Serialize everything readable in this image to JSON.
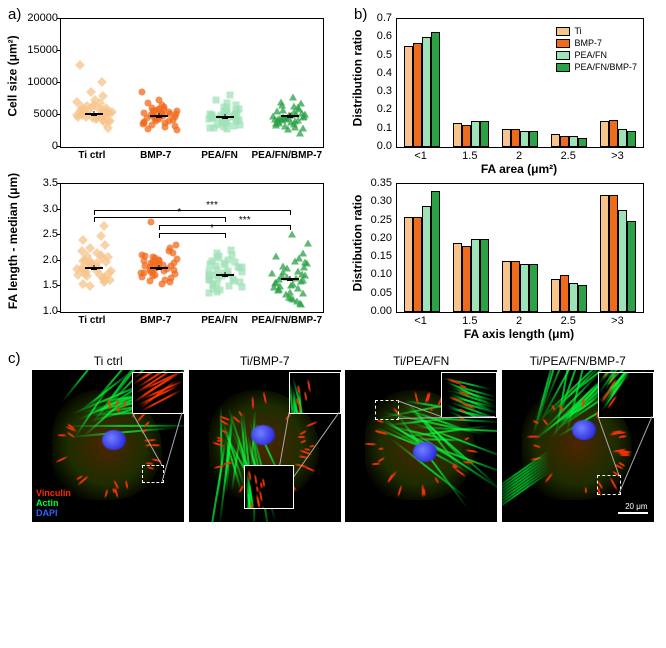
{
  "panels": {
    "a": "a)",
    "b": "b)",
    "c": "c)"
  },
  "colors": {
    "ti": "#f7c48b",
    "bmp7": "#f06a1c",
    "peafn": "#9fe2b8",
    "peafnbmp7": "#2aa245",
    "ti_border": "#c08040",
    "peafn_border": "#4ab078"
  },
  "scatter": {
    "categories": [
      "Ti ctrl",
      "BMP-7",
      "PEA/FN",
      "PEA/FN/BMP-7"
    ],
    "markers": [
      "diamond",
      "circle",
      "square",
      "tri"
    ],
    "series_colors": [
      "#f7c48b",
      "#f06a1c",
      "#9fe2b8",
      "#2aa245"
    ],
    "top": {
      "ylabel": "Cell size (μm²)",
      "ymin": 0,
      "ymax": 20000,
      "ystep": 5000,
      "means": [
        5300,
        5000,
        4800,
        5000
      ],
      "sems": [
        400,
        350,
        350,
        300
      ],
      "data": [
        [
          3000,
          3800,
          4000,
          4200,
          4300,
          4400,
          4600,
          4700,
          4800,
          4900,
          5000,
          5100,
          5200,
          5300,
          5400,
          5500,
          5600,
          5800,
          5900,
          6100,
          6200,
          6300,
          6400,
          6600,
          6900,
          7100,
          7400,
          7900,
          8600,
          10200,
          12800,
          4100,
          4500,
          5050,
          5250,
          5450,
          5650,
          5750,
          4650,
          4950
        ],
        [
          2700,
          2800,
          3100,
          3300,
          3500,
          3700,
          3800,
          3900,
          4000,
          4100,
          4200,
          4300,
          4400,
          4500,
          4650,
          4800,
          4900,
          5000,
          5100,
          5200,
          5300,
          5400,
          5600,
          5800,
          5900,
          6100,
          6300,
          6500,
          6800,
          7400,
          8600,
          3600,
          4550,
          4750,
          5050,
          5150,
          5350,
          5550,
          5700,
          6000
        ],
        [
          2800,
          2900,
          3000,
          3100,
          3300,
          3500,
          3700,
          3900,
          4000,
          4100,
          4200,
          4400,
          4500,
          4600,
          4700,
          4800,
          4900,
          5000,
          5100,
          5300,
          5400,
          5500,
          5700,
          5900,
          6100,
          6300,
          6500,
          6900,
          7300,
          8100,
          3400,
          3800,
          4300,
          4550,
          4650,
          4750,
          4850,
          5050,
          5200,
          5600
        ],
        [
          2200,
          2800,
          3100,
          3300,
          3500,
          3700,
          3900,
          4000,
          4100,
          4200,
          4300,
          4400,
          4500,
          4600,
          4700,
          4800,
          4900,
          5000,
          5100,
          5200,
          5400,
          5600,
          5800,
          5900,
          6200,
          6400,
          6600,
          6900,
          7100,
          7800,
          3000,
          3600,
          3800,
          4150,
          4350,
          4550,
          4650,
          4750,
          4950,
          5300
        ]
      ]
    },
    "bottom": {
      "ylabel": "FA length - median (μm)",
      "ymin": 1.0,
      "ymax": 3.5,
      "ystep": 0.5,
      "means": [
        1.87,
        1.87,
        1.74,
        1.66
      ],
      "sems": [
        0.04,
        0.04,
        0.04,
        0.04
      ],
      "sig": [
        {
          "from": 0,
          "to": 2,
          "y": 2.85,
          "label": "*"
        },
        {
          "from": 0,
          "to": 3,
          "y": 3.0,
          "label": "***"
        },
        {
          "from": 1,
          "to": 2,
          "y": 2.55,
          "label": "*"
        },
        {
          "from": 1,
          "to": 3,
          "y": 2.7,
          "label": "***"
        }
      ],
      "data": [
        [
          1.5,
          1.55,
          1.6,
          1.62,
          1.65,
          1.68,
          1.7,
          1.72,
          1.75,
          1.77,
          1.79,
          1.8,
          1.82,
          1.84,
          1.86,
          1.88,
          1.9,
          1.92,
          1.94,
          1.96,
          1.98,
          2.0,
          2.02,
          2.05,
          2.1,
          2.12,
          2.15,
          2.2,
          2.25,
          2.3,
          2.4,
          2.48,
          2.68,
          1.58,
          1.73,
          1.81,
          1.93,
          2.07,
          1.67,
          1.99
        ],
        [
          1.8,
          1.55,
          1.6,
          1.63,
          1.66,
          1.7,
          1.72,
          1.74,
          1.76,
          1.78,
          1.8,
          1.82,
          1.84,
          1.86,
          1.88,
          1.9,
          1.92,
          1.94,
          1.96,
          1.98,
          2.0,
          2.02,
          2.04,
          2.06,
          2.08,
          2.12,
          2.15,
          2.2,
          2.25,
          2.3,
          2.75,
          1.58,
          1.68,
          1.83,
          1.91,
          1.99,
          2.1,
          1.77,
          1.89,
          1.95
        ],
        [
          1.38,
          1.42,
          1.45,
          1.48,
          1.5,
          1.52,
          1.55,
          1.58,
          1.6,
          1.62,
          1.64,
          1.66,
          1.68,
          1.7,
          1.72,
          1.74,
          1.76,
          1.78,
          1.8,
          1.82,
          1.85,
          1.88,
          1.9,
          1.92,
          1.95,
          1.98,
          2.0,
          2.05,
          2.1,
          2.15,
          2.22,
          1.4,
          1.54,
          1.63,
          1.73,
          1.81,
          1.87,
          1.93,
          2.02,
          2.12
        ],
        [
          1.15,
          1.18,
          1.22,
          1.25,
          1.3,
          1.35,
          1.38,
          1.42,
          1.45,
          1.48,
          1.5,
          1.52,
          1.55,
          1.58,
          1.6,
          1.62,
          1.65,
          1.68,
          1.7,
          1.72,
          1.75,
          1.78,
          1.8,
          1.85,
          1.9,
          1.95,
          2.0,
          2.05,
          2.1,
          2.15,
          2.35,
          2.52,
          1.28,
          1.4,
          1.47,
          1.57,
          1.67,
          1.77,
          1.88,
          1.98
        ]
      ]
    }
  },
  "bars": {
    "legend": [
      "Ti",
      "BMP-7",
      "PEA/FN",
      "PEA/FN/BMP-7"
    ],
    "legend_colors": [
      "#f7c48b",
      "#f06a1c",
      "#9fe2b8",
      "#2aa245"
    ],
    "legend_hatch": [
      "hatch-x",
      "",
      "hatch-x",
      ""
    ],
    "ylabel": "Distribution ratio",
    "top": {
      "xlabel": "FA area (μm²)",
      "categories": [
        "<1",
        "1.5",
        "2",
        "2.5",
        ">3"
      ],
      "ymax": 0.7,
      "ystep": 0.1,
      "values": [
        [
          0.55,
          0.57,
          0.6,
          0.63
        ],
        [
          0.13,
          0.12,
          0.14,
          0.14
        ],
        [
          0.1,
          0.1,
          0.09,
          0.09
        ],
        [
          0.07,
          0.06,
          0.06,
          0.05
        ],
        [
          0.14,
          0.15,
          0.1,
          0.09
        ]
      ]
    },
    "bottom": {
      "xlabel": "FA axis length (μm)",
      "categories": [
        "<1",
        "1.5",
        "2",
        "2.5",
        ">3"
      ],
      "ymax": 0.35,
      "ystep": 0.05,
      "values": [
        [
          0.26,
          0.26,
          0.29,
          0.33
        ],
        [
          0.19,
          0.18,
          0.2,
          0.2
        ],
        [
          0.14,
          0.14,
          0.13,
          0.13
        ],
        [
          0.09,
          0.1,
          0.08,
          0.075
        ],
        [
          0.32,
          0.32,
          0.28,
          0.25
        ]
      ]
    }
  },
  "micro": {
    "titles": [
      "Ti ctrl",
      "Ti/BMP-7",
      "Ti/PEA/FN",
      "Ti/PEA/FN/BMP-7"
    ],
    "stains": [
      {
        "name": "Vinculin",
        "color": "#ff2a00"
      },
      {
        "name": "Actin",
        "color": "#00ff3c"
      },
      {
        "name": "DAPI",
        "color": "#3060ff"
      }
    ],
    "scalebar": "20 μm"
  }
}
